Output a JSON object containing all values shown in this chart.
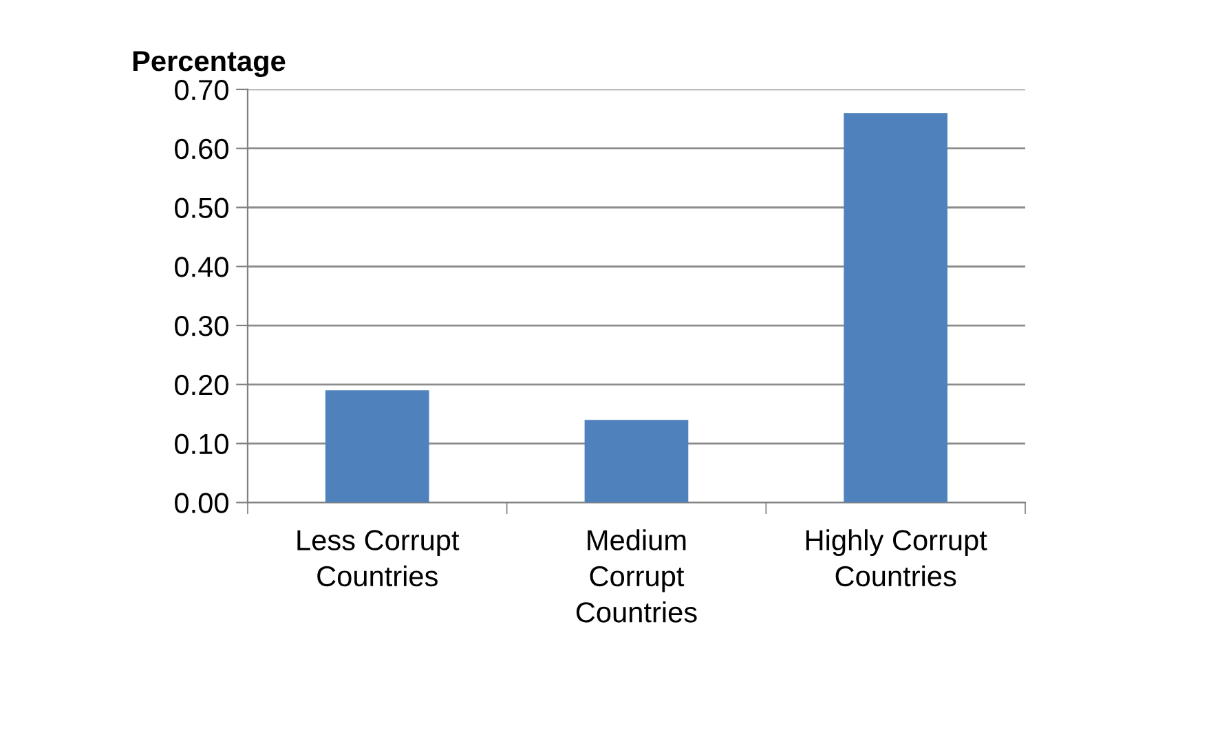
{
  "chart_data": {
    "type": "bar",
    "ylabel": "Percentage",
    "categories": [
      "Less Corrupt\nCountries",
      "Medium\nCorrupt\nCountries",
      "Highly Corrupt\nCountries"
    ],
    "values": [
      0.19,
      0.14,
      0.66
    ],
    "color": "#4f81bd",
    "ylim": [
      0,
      0.7
    ],
    "yticks": [
      {
        "value": 0,
        "label": "0.00"
      },
      {
        "value": 0.1,
        "label": "0.10"
      },
      {
        "value": 0.2,
        "label": "0.20"
      },
      {
        "value": 0.3,
        "label": "0.30"
      },
      {
        "value": 0.4,
        "label": "0.40"
      },
      {
        "value": 0.5,
        "label": "0.50"
      },
      {
        "value": 0.6,
        "label": "0.60"
      },
      {
        "value": 0.7,
        "label": "0.70"
      }
    ],
    "grid": "y"
  }
}
